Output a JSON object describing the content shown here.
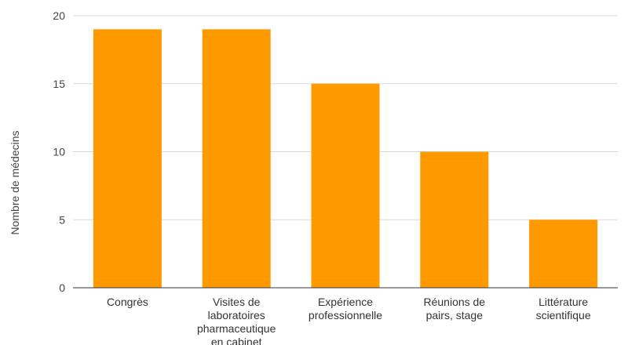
{
  "chart_data": {
    "type": "bar",
    "title": "",
    "xlabel": "",
    "ylabel": "Nombre de médecins",
    "ylim": [
      0,
      20
    ],
    "yticks": [
      0,
      5,
      10,
      15,
      20
    ],
    "grid": true,
    "legend": "none",
    "bar_color": "#ff9900",
    "categories": [
      [
        "Congrès"
      ],
      [
        "Visites de",
        "laboratoires",
        "pharmaceutique",
        "en cabinet"
      ],
      [
        "Expérience",
        "professionnelle"
      ],
      [
        "Réunions de",
        "pairs, stage"
      ],
      [
        "Littérature",
        "scientifique"
      ]
    ],
    "values": [
      19,
      19,
      15,
      10,
      5
    ]
  }
}
